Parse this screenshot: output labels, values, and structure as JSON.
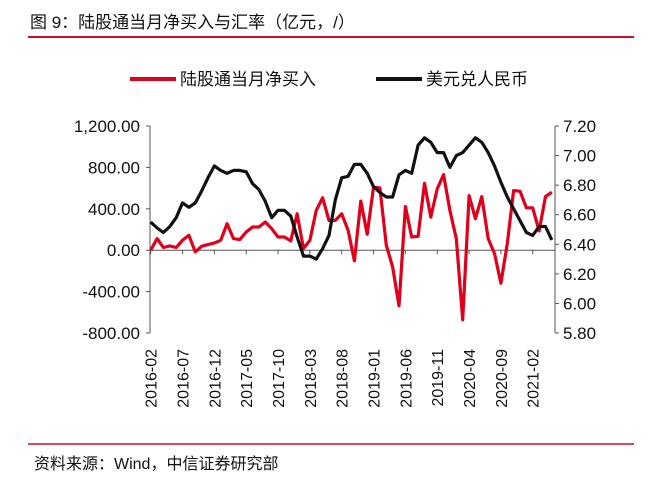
{
  "title": "图 9：陆股通当月净买入与汇率（亿元，/）",
  "source": "资料来源：Wind，中信证券研究部",
  "colors": {
    "accent": "#c8102e",
    "series1": "#e0001b",
    "series2": "#111111"
  },
  "chart_data": {
    "type": "line",
    "legend_position": "top",
    "grid": false,
    "x_tick_labels": [
      "2016-02",
      "2016-07",
      "2016-12",
      "2017-05",
      "2017-10",
      "2018-03",
      "2018-08",
      "2019-01",
      "2019-06",
      "2019-11",
      "2020-04",
      "2020-09",
      "2021-02"
    ],
    "x_start": "2016-02",
    "x_end": "2021-05",
    "left_axis": {
      "ylim": [
        -800,
        1200
      ],
      "ticks": [
        "-800.00",
        "-400.00",
        "0.00",
        "400.00",
        "800.00",
        "1,200.00"
      ]
    },
    "right_axis": {
      "ylim": [
        5.8,
        7.2
      ],
      "ticks": [
        "5.80",
        "6.00",
        "6.20",
        "6.40",
        "6.60",
        "6.80",
        "7.00",
        "7.20"
      ]
    },
    "series": [
      {
        "name": "陆股通当月净买入",
        "axis": "left",
        "color": "#e0001b",
        "values": [
          0,
          112,
          26,
          42,
          26,
          96,
          144,
          -16,
          38,
          54,
          70,
          96,
          256,
          112,
          102,
          176,
          224,
          224,
          272,
          208,
          128,
          128,
          90,
          352,
          16,
          96,
          384,
          506,
          288,
          288,
          352,
          192,
          -102,
          474,
          154,
          608,
          602,
          48,
          -160,
          -538,
          422,
          128,
          134,
          646,
          320,
          592,
          730,
          384,
          112,
          -672,
          528,
          304,
          518,
          112,
          -32,
          -320,
          64,
          576,
          570,
          410,
          410,
          186,
          518,
          560
        ]
      },
      {
        "name": "美元兑人民币",
        "axis": "right",
        "color": "#111111",
        "values": [
          6.55,
          6.51,
          6.48,
          6.52,
          6.58,
          6.68,
          6.65,
          6.68,
          6.76,
          6.85,
          6.93,
          6.9,
          6.88,
          6.9,
          6.9,
          6.89,
          6.81,
          6.77,
          6.69,
          6.58,
          6.63,
          6.63,
          6.59,
          6.45,
          6.32,
          6.32,
          6.3,
          6.37,
          6.46,
          6.7,
          6.85,
          6.86,
          6.94,
          6.94,
          6.88,
          6.79,
          6.75,
          6.72,
          6.72,
          6.87,
          6.9,
          6.88,
          7.07,
          7.12,
          7.09,
          7.02,
          7.02,
          6.92,
          7.0,
          7.02,
          7.07,
          7.12,
          7.09,
          7.02,
          6.93,
          6.82,
          6.72,
          6.64,
          6.56,
          6.48,
          6.46,
          6.52,
          6.52,
          6.43
        ]
      }
    ]
  }
}
